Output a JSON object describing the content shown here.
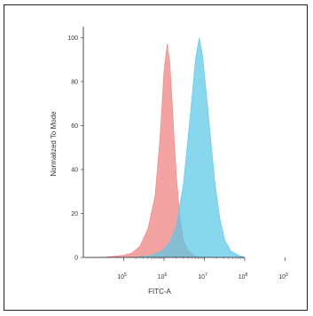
{
  "chart_data": {
    "type": "area",
    "xlabel": "FITC-A",
    "ylabel": "Normalized To Mode",
    "x_scale": "log",
    "xlim": [
      10000,
      100000000
    ],
    "ylim": [
      0,
      105
    ],
    "x_ticks": [
      {
        "value": 100000,
        "base": "10",
        "exp": "5"
      },
      {
        "value": 1000000,
        "base": "10",
        "exp": "6"
      },
      {
        "value": 10000000,
        "base": "10",
        "exp": "7"
      },
      {
        "value": 100000000,
        "base": "10",
        "exp": "8"
      },
      {
        "value": 1000000000,
        "base": "10",
        "exp": "9"
      }
    ],
    "y_ticks": [
      0,
      20,
      40,
      60,
      80,
      100
    ],
    "y_tick_labels": [
      "0",
      "20",
      "40",
      "60",
      "80",
      "100"
    ],
    "grid": false,
    "legend": "none",
    "series": [
      {
        "color": "#f08080",
        "x": [
          12000,
          30000,
          100000,
          160000,
          250000,
          400000,
          600000,
          800000,
          1000000,
          1200000,
          1400000,
          1600000,
          1800000,
          2100000,
          2500000,
          3000000,
          4000000,
          5500000,
          8000000
        ],
        "y": [
          0,
          0,
          1,
          2,
          5,
          13,
          28,
          55,
          85,
          97,
          88,
          70,
          52,
          33,
          18,
          8,
          3,
          1,
          0
        ]
      },
      {
        "color": "#5bc8e6",
        "x": [
          12000,
          200000,
          500000,
          900000,
          1400000,
          2000000,
          3000000,
          4500000,
          6000000,
          7500000,
          9000000,
          11000000,
          14000000,
          18000000,
          24000000,
          32000000,
          45000000,
          70000000,
          100000000
        ],
        "y": [
          0,
          0,
          1,
          3,
          7,
          14,
          33,
          65,
          90,
          100,
          92,
          76,
          56,
          35,
          18,
          8,
          3,
          1,
          0
        ]
      }
    ]
  }
}
